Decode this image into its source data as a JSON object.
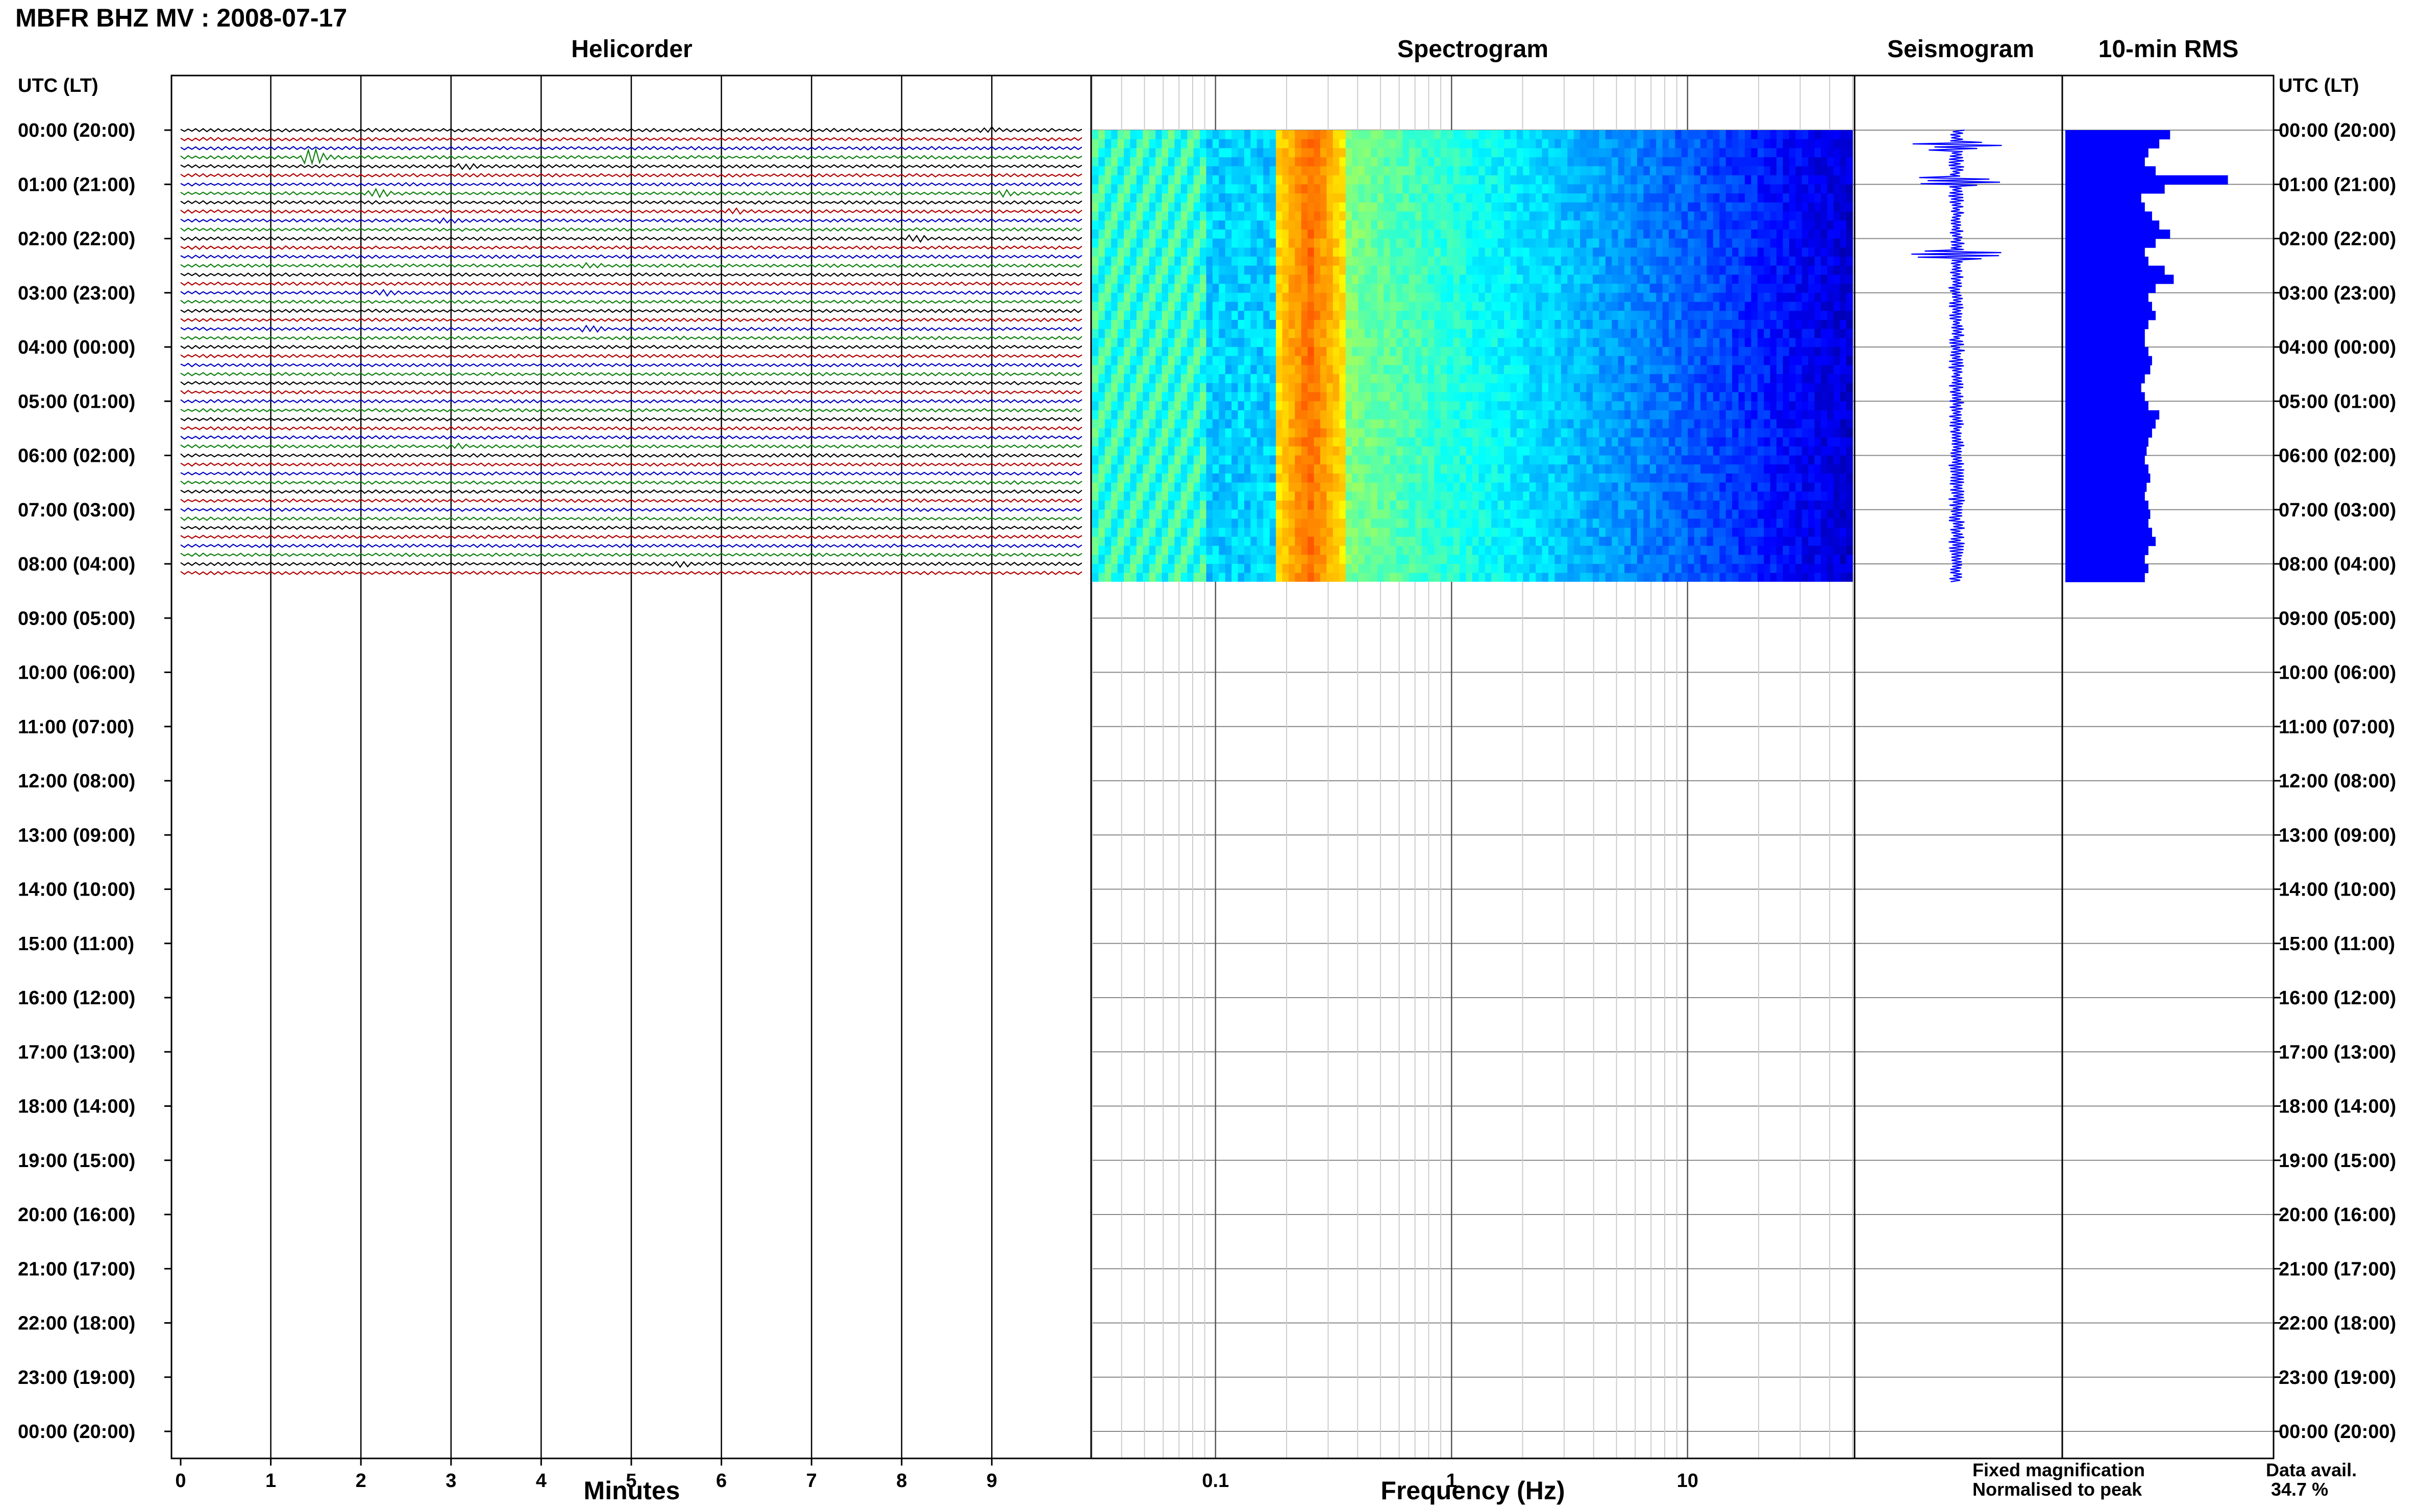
{
  "title": "MBFR BHZ MV : 2008-07-17",
  "panels": {
    "helicorder": "Helicorder",
    "spectrogram": "Spectrogram",
    "seismogram": "Seismogram",
    "rms": "10-min RMS"
  },
  "time_axis_label": "UTC (LT)",
  "time_labels": [
    "00:00 (20:00)",
    "01:00 (21:00)",
    "02:00 (22:00)",
    "03:00 (23:00)",
    "04:00 (00:00)",
    "05:00 (01:00)",
    "06:00 (02:00)",
    "07:00 (03:00)",
    "08:00 (04:00)",
    "09:00 (05:00)",
    "10:00 (06:00)",
    "11:00 (07:00)",
    "12:00 (08:00)",
    "13:00 (09:00)",
    "14:00 (10:00)",
    "15:00 (11:00)",
    "16:00 (12:00)",
    "17:00 (13:00)",
    "18:00 (14:00)",
    "19:00 (15:00)",
    "20:00 (16:00)",
    "21:00 (17:00)",
    "22:00 (18:00)",
    "23:00 (19:00)",
    "00:00 (20:00)"
  ],
  "x_axes": {
    "minutes_label": "Minutes",
    "minutes_ticks": [
      "0",
      "1",
      "2",
      "3",
      "4",
      "5",
      "6",
      "7",
      "8",
      "9"
    ],
    "frequency_label": "Frequency (Hz)",
    "frequency_ticks": [
      "0.1",
      "1",
      "10"
    ]
  },
  "legend": {
    "fixed": "Fixed magnification",
    "normalised": "Normalised to peak",
    "avail_label": "Data avail.",
    "avail_value": "34.7 %"
  },
  "colors": {
    "trace_cycle": [
      "#000000",
      "#b00000",
      "#0000c0",
      "#108010"
    ],
    "legend_fixed": "#0000ff",
    "legend_normalised": "#ff0000",
    "seismogram": "#0000ff",
    "rms_bar": "#0000ff"
  },
  "chart_data": [
    {
      "type": "line",
      "name": "helicorder",
      "xlabel": "Minutes",
      "xlim": [
        0,
        10
      ],
      "row_minutes": 10,
      "rows_recorded": 50,
      "rows_total": 144,
      "event_rows": [
        {
          "row": 0,
          "minute": 9.0,
          "amp": 2.0
        },
        {
          "row": 3,
          "minute": 1.5,
          "amp": 5.0
        },
        {
          "row": 4,
          "minute": 3.2,
          "amp": 2.0
        },
        {
          "row": 7,
          "minute": 2.2,
          "amp": 3.0
        },
        {
          "row": 7,
          "minute": 9.2,
          "amp": 2.2
        },
        {
          "row": 9,
          "minute": 6.2,
          "amp": 2.0
        },
        {
          "row": 10,
          "minute": 3.0,
          "amp": 1.8
        },
        {
          "row": 12,
          "minute": 8.2,
          "amp": 2.5
        },
        {
          "row": 15,
          "minute": 4.6,
          "amp": 1.8
        },
        {
          "row": 18,
          "minute": 2.3,
          "amp": 2.0
        },
        {
          "row": 22,
          "minute": 4.6,
          "amp": 2.2
        },
        {
          "row": 35,
          "minute": 3.1,
          "amp": 1.8
        },
        {
          "row": 48,
          "minute": 5.6,
          "amp": 2.0
        }
      ]
    },
    {
      "type": "heatmap",
      "name": "spectrogram",
      "xlabel": "Frequency (Hz)",
      "x_scale": "log",
      "xlim": [
        0.03,
        50
      ],
      "peak_band_hz": [
        0.18,
        0.35
      ],
      "hours_recorded": 8.33
    },
    {
      "type": "line",
      "name": "seismogram",
      "hours_recorded": 8.33,
      "spikes_hours": [
        0.95,
        2.3,
        0.3
      ]
    },
    {
      "type": "bar",
      "name": "10-min RMS",
      "values": [
        0.58,
        0.52,
        0.46,
        0.44,
        0.5,
        0.9,
        0.55,
        0.42,
        0.44,
        0.48,
        0.52,
        0.58,
        0.5,
        0.44,
        0.46,
        0.55,
        0.6,
        0.5,
        0.46,
        0.48,
        0.5,
        0.46,
        0.44,
        0.44,
        0.46,
        0.48,
        0.47,
        0.44,
        0.42,
        0.44,
        0.46,
        0.52,
        0.5,
        0.48,
        0.46,
        0.45,
        0.44,
        0.46,
        0.47,
        0.45,
        0.44,
        0.46,
        0.47,
        0.46,
        0.48,
        0.5,
        0.46,
        0.44,
        0.46,
        0.44
      ]
    }
  ]
}
